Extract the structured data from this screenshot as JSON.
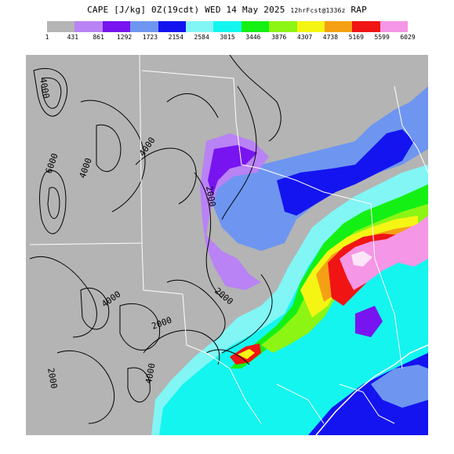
{
  "header": {
    "field": "CAPE",
    "units": "[J/kg]",
    "valid": "0Z(19cdt) WED 14 May 2025",
    "forecast_label": "12hrFcst@1336z",
    "model": "RAP"
  },
  "legend": {
    "colors": [
      "#b4b4b4",
      "#b982f5",
      "#7814f0",
      "#6e96f0",
      "#1414f0",
      "#82f5f5",
      "#14f5f0",
      "#14f014",
      "#8cf514",
      "#f5f514",
      "#f5a014",
      "#f01414",
      "#f596e6"
    ],
    "ticks": [
      "1",
      "431",
      "861",
      "1292",
      "1723",
      "2154",
      "2584",
      "3015",
      "3446",
      "3876",
      "4307",
      "4738",
      "5169",
      "5599",
      "6029"
    ]
  },
  "map": {
    "contour_labels": [
      "6000",
      "4000",
      "4000",
      "2000",
      "2000",
      "4000",
      "2000",
      "2000",
      "4000",
      "4000"
    ]
  }
}
